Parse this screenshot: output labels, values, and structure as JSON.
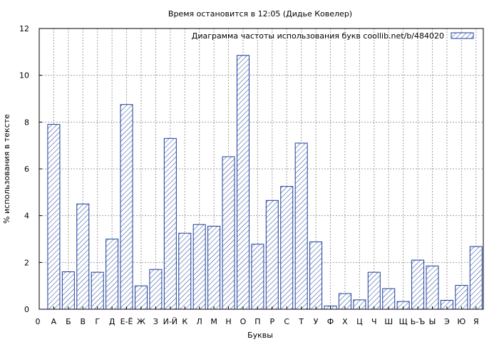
{
  "chart_data": {
    "type": "bar",
    "title": "Время остановится в 12:05 (Дидье Ковелер)",
    "xlabel": "Буквы",
    "ylabel": "% использования в тексте",
    "ylim": [
      0,
      12
    ],
    "yticks": [
      "0",
      "2",
      "4",
      "6",
      "8",
      "10",
      "12"
    ],
    "x_origin_label": "0",
    "grid": true,
    "legend_position": "top-right",
    "colors": {
      "bar_stroke": "#1a3d99",
      "bar_hatch": "#1a3d99",
      "grid": "#a0a0a0",
      "axis": "#000000"
    },
    "categories": [
      "А",
      "Б",
      "В",
      "Г",
      "Д",
      "Е-Ё",
      "Ж",
      "З",
      "И-Й",
      "К",
      "Л",
      "М",
      "Н",
      "О",
      "П",
      "Р",
      "С",
      "Т",
      "У",
      "Ф",
      "Х",
      "Ц",
      "Ч",
      "Ш",
      "Щ",
      "Ь-Ъ",
      "Ы",
      "Э",
      "Ю",
      "Я"
    ],
    "series": [
      {
        "name": "Диаграмма частоты использования букв  coollib.net/b/484020",
        "values": [
          7.9,
          1.6,
          4.5,
          1.58,
          3.0,
          8.75,
          1.0,
          1.7,
          7.3,
          3.25,
          3.62,
          3.55,
          6.52,
          10.85,
          2.78,
          4.65,
          5.25,
          7.1,
          2.88,
          0.14,
          0.67,
          0.4,
          1.58,
          0.88,
          0.33,
          2.1,
          1.85,
          0.38,
          1.02,
          2.68
        ]
      }
    ]
  }
}
